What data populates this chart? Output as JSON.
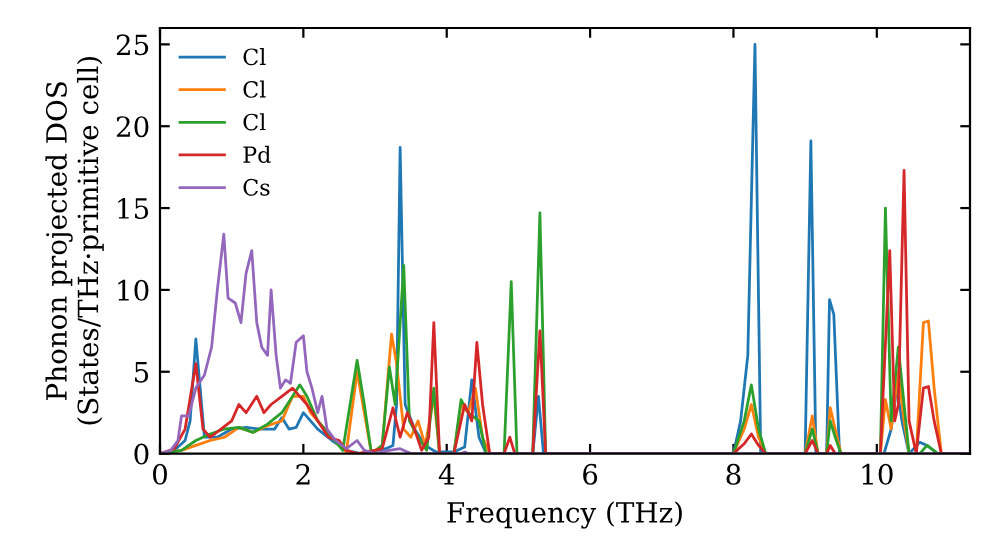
{
  "chart_data": {
    "type": "line",
    "xlabel": "Frequency (THz)",
    "ylabel": "Phonon projected DOS\n(States/THz·primitive cell)",
    "xlim": [
      0,
      11.3
    ],
    "ylim": [
      0,
      26
    ],
    "xticks": [
      0,
      2,
      4,
      6,
      8,
      10
    ],
    "yticks": [
      0,
      5,
      10,
      15,
      20,
      25
    ],
    "grid": false,
    "legend": "top left",
    "marker": "none",
    "line_style": "solid",
    "series": [
      {
        "name": "Cl",
        "color": "#1f77b4",
        "x": [
          0,
          0.2,
          0.35,
          0.42,
          0.5,
          0.62,
          0.8,
          1.0,
          1.2,
          1.4,
          1.6,
          1.7,
          1.8,
          1.9,
          2.0,
          2.1,
          2.2,
          2.4,
          2.6,
          2.8,
          3.15,
          3.25,
          3.3,
          3.35,
          3.42,
          3.55,
          3.7,
          3.85,
          4.1,
          4.25,
          4.35,
          4.45,
          4.55,
          5.2,
          5.28,
          5.35,
          8.0,
          8.1,
          8.2,
          8.3,
          8.38,
          9.0,
          9.08,
          9.15,
          9.3,
          9.34,
          9.4,
          9.48,
          10.1,
          10.2,
          10.28,
          10.35,
          10.45,
          10.6,
          10.7,
          10.85,
          11.3
        ],
        "values": [
          0,
          0.2,
          0.8,
          2,
          7,
          1,
          1.0,
          1.5,
          1.6,
          1.5,
          1.5,
          2.2,
          1.5,
          1.6,
          2.5,
          2.0,
          1.5,
          0.8,
          0.2,
          0,
          0.3,
          0.5,
          3,
          18.7,
          3,
          1.5,
          0.5,
          0.1,
          0.1,
          0.4,
          4.5,
          1,
          0,
          0,
          3.5,
          0,
          0,
          2,
          6,
          25,
          0,
          0,
          19.1,
          0,
          0,
          9.4,
          8.5,
          0,
          0,
          1.5,
          4,
          2,
          0,
          0.7,
          0.5,
          0,
          0
        ]
      },
      {
        "name": "Cl",
        "color": "#ff7f0e",
        "x": [
          0,
          0.3,
          0.5,
          0.7,
          0.9,
          1.1,
          1.3,
          1.5,
          1.7,
          1.85,
          2.0,
          2.1,
          2.3,
          2.5,
          2.6,
          2.75,
          2.85,
          2.95,
          3.1,
          3.23,
          3.3,
          3.4,
          3.5,
          3.6,
          3.7,
          3.82,
          3.9,
          4.1,
          4.2,
          4.3,
          4.4,
          4.5,
          4.6,
          4.8,
          4.9,
          5.0,
          5.2,
          5.3,
          5.4,
          8.0,
          8.15,
          8.25,
          8.35,
          8.45,
          9.0,
          9.1,
          9.18,
          9.3,
          9.35,
          9.42,
          9.5,
          10.05,
          10.12,
          10.2,
          10.3,
          10.38,
          10.45,
          10.55,
          10.65,
          10.72,
          10.8,
          10.9,
          11.3
        ],
        "values": [
          0,
          0.2,
          0.5,
          0.8,
          1.0,
          1.6,
          1.3,
          1.7,
          2.0,
          3.5,
          3.5,
          2.5,
          1.5,
          0.5,
          0.1,
          5.0,
          2.5,
          0,
          0.5,
          7.3,
          5.5,
          1.5,
          1,
          2.0,
          0.5,
          3.5,
          0,
          0,
          3,
          2.5,
          4,
          1,
          0,
          0,
          null,
          0,
          0,
          null,
          0,
          0,
          1.5,
          3,
          1,
          0,
          0,
          2.3,
          0,
          0,
          2.8,
          1.5,
          0,
          0,
          3.3,
          1.5,
          5,
          2,
          0,
          0,
          8,
          8.1,
          4,
          0,
          0
        ]
      },
      {
        "name": "Cl",
        "color": "#2ca02c",
        "x": [
          0,
          0.3,
          0.5,
          0.7,
          0.9,
          1.1,
          1.3,
          1.5,
          1.7,
          1.85,
          1.95,
          2.05,
          2.2,
          2.4,
          2.55,
          2.75,
          2.85,
          2.95,
          3.1,
          3.2,
          3.28,
          3.4,
          3.48,
          3.6,
          3.72,
          3.82,
          3.9,
          4.1,
          4.2,
          4.3,
          4.45,
          4.55,
          4.8,
          4.9,
          4.98,
          5.2,
          5.3,
          5.38,
          8.0,
          8.15,
          8.25,
          8.35,
          8.45,
          9.0,
          9.1,
          9.18,
          9.3,
          9.35,
          9.42,
          9.5,
          10.05,
          10.12,
          10.2,
          10.3,
          10.38,
          10.45,
          10.6,
          10.7,
          10.85,
          11.3
        ],
        "values": [
          0,
          0.2,
          0.8,
          1.2,
          1.5,
          1.6,
          1.3,
          1.8,
          2.5,
          3.5,
          4.2,
          3.5,
          2,
          1,
          0.2,
          5.7,
          3,
          0,
          0.5,
          5.3,
          3,
          11.5,
          2,
          1,
          0.2,
          4.0,
          0,
          0,
          3.3,
          2.5,
          2,
          0,
          0,
          10.5,
          0,
          0,
          14.7,
          0,
          0,
          2,
          4.2,
          1.5,
          0,
          0,
          1.5,
          0,
          0,
          2.0,
          1.0,
          0,
          0,
          15,
          2,
          6.5,
          3,
          0,
          0,
          0.5,
          0,
          0
        ]
      },
      {
        "name": "Pd",
        "color": "#d62728",
        "x": [
          0,
          0.2,
          0.35,
          0.5,
          0.6,
          0.7,
          0.85,
          1.0,
          1.1,
          1.2,
          1.35,
          1.45,
          1.55,
          1.7,
          1.85,
          1.95,
          2.05,
          2.2,
          2.35,
          2.5,
          2.6,
          2.75,
          2.9,
          3.1,
          3.25,
          3.35,
          3.45,
          3.55,
          3.65,
          3.75,
          3.82,
          3.9,
          4.1,
          4.25,
          4.35,
          4.42,
          4.5,
          4.6,
          4.8,
          4.88,
          4.95,
          5.2,
          5.3,
          5.38,
          8.0,
          8.15,
          8.25,
          8.35,
          8.45,
          9.0,
          9.1,
          9.18,
          9.3,
          9.35,
          9.42,
          10.05,
          10.18,
          10.25,
          10.3,
          10.38,
          10.45,
          10.55,
          10.65,
          10.72,
          10.8,
          10.9,
          11.3
        ],
        "values": [
          0,
          0.3,
          1.5,
          5.5,
          1.5,
          1.0,
          1.5,
          2.0,
          3,
          2.5,
          3.5,
          2.5,
          3,
          3.5,
          4,
          3.5,
          3,
          2,
          1,
          0.8,
          0.2,
          0,
          0.1,
          0.3,
          2.8,
          1,
          2.5,
          1.5,
          0.2,
          1,
          8.0,
          0,
          0,
          3,
          2,
          6.8,
          3,
          0,
          0,
          1,
          0,
          0,
          7.5,
          0,
          0,
          0.6,
          1.2,
          0.5,
          0,
          0,
          0.8,
          0,
          0,
          0.5,
          0,
          0,
          12.4,
          2,
          3,
          17.3,
          2,
          0,
          4,
          4.1,
          2,
          0,
          0
        ]
      },
      {
        "name": "Cs",
        "color": "#9467bd",
        "x": [
          0,
          0.15,
          0.25,
          0.3,
          0.4,
          0.5,
          0.62,
          0.72,
          0.8,
          0.89,
          0.95,
          1.05,
          1.13,
          1.2,
          1.28,
          1.35,
          1.42,
          1.5,
          1.55,
          1.62,
          1.68,
          1.75,
          1.82,
          1.9,
          2.0,
          2.05,
          2.12,
          2.2,
          2.26,
          2.33,
          2.45,
          2.6,
          2.75,
          2.85,
          3.0,
          3.2,
          3.35,
          3.5,
          4.2,
          4.25,
          4.3,
          11.3
        ],
        "values": [
          0,
          0.2,
          0.8,
          2.3,
          2.3,
          4,
          4.8,
          6.5,
          10,
          13.4,
          9.5,
          9.2,
          8,
          11,
          12.4,
          8,
          6.5,
          6,
          10,
          6,
          4,
          4.5,
          4.3,
          6.8,
          7.2,
          5,
          4.0,
          2.5,
          3.5,
          1.5,
          0.8,
          0.3,
          0.8,
          0.2,
          0,
          0.2,
          0.3,
          0,
          0,
          0.1,
          0,
          0
        ]
      }
    ]
  }
}
